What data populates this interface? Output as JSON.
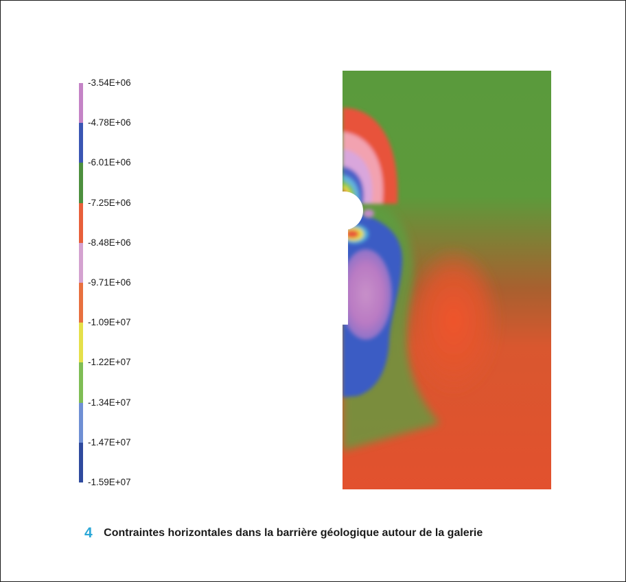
{
  "figure": {
    "number": "4",
    "caption": "Contraintes horizontales dans la barrière géologique autour de la galerie"
  },
  "legend": {
    "labels": [
      "-3.54E+06",
      "-4.78E+06",
      "-6.01E+06",
      "-7.25E+06",
      "-8.48E+06",
      "-9.71E+06",
      "-1.09E+07",
      "-1.22E+07",
      "-1.34E+07",
      "-1.47E+07",
      "-1.59E+07"
    ],
    "band_colors": [
      "#c483c6",
      "#3b56b3",
      "#4d8f3e",
      "#e85f3b",
      "#d4a2d0",
      "#e8703f",
      "#e5e04a",
      "#7fbd55",
      "#6f8fd4",
      "#2f4a9e"
    ]
  },
  "colors": {
    "green_field": "#5a9a3c",
    "red_field": "#e2512e",
    "blue_zone": "#3a5cc4",
    "violet_zone": "#b97ac3",
    "caption_accent": "#2aa7d7"
  }
}
